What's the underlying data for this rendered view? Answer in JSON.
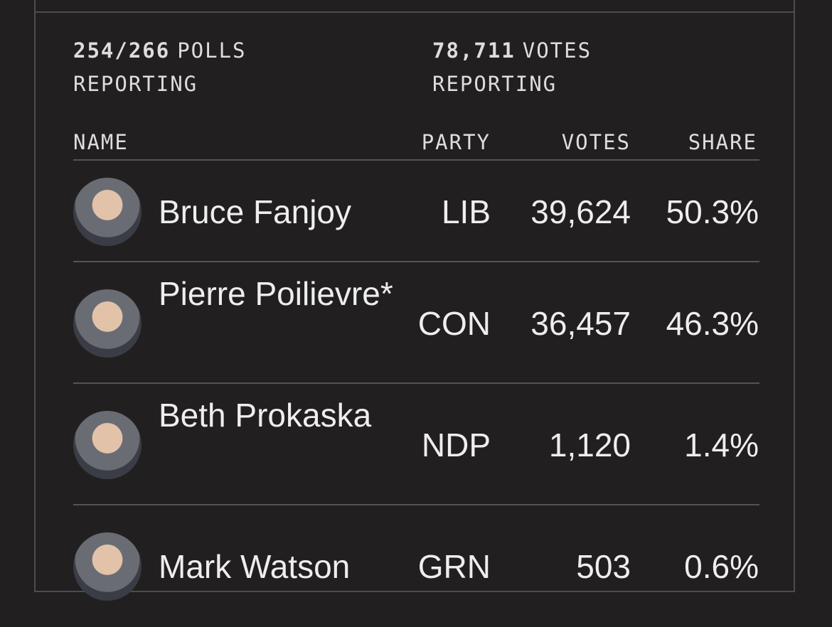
{
  "stats": [
    {
      "count": "254/266",
      "label_lines": [
        "POLLS",
        "REPORTING"
      ]
    },
    {
      "count": "78,711",
      "label_lines": [
        "VOTES",
        "REPORTING"
      ]
    }
  ],
  "table": {
    "columns": [
      "NAME",
      "PARTY",
      "VOTES",
      "SHARE"
    ],
    "rows": [
      [
        "Bruce Fanjoy",
        "LIB",
        "39,624",
        "50.3%"
      ],
      [
        "Pierre Poilievre*",
        "CON",
        "36,457",
        "46.3%"
      ],
      [
        "Beth Prokaska",
        "NDP",
        "1,120",
        "1.4%"
      ],
      [
        "Mark Watson",
        "GRN",
        "503",
        "0.6%"
      ]
    ]
  }
}
